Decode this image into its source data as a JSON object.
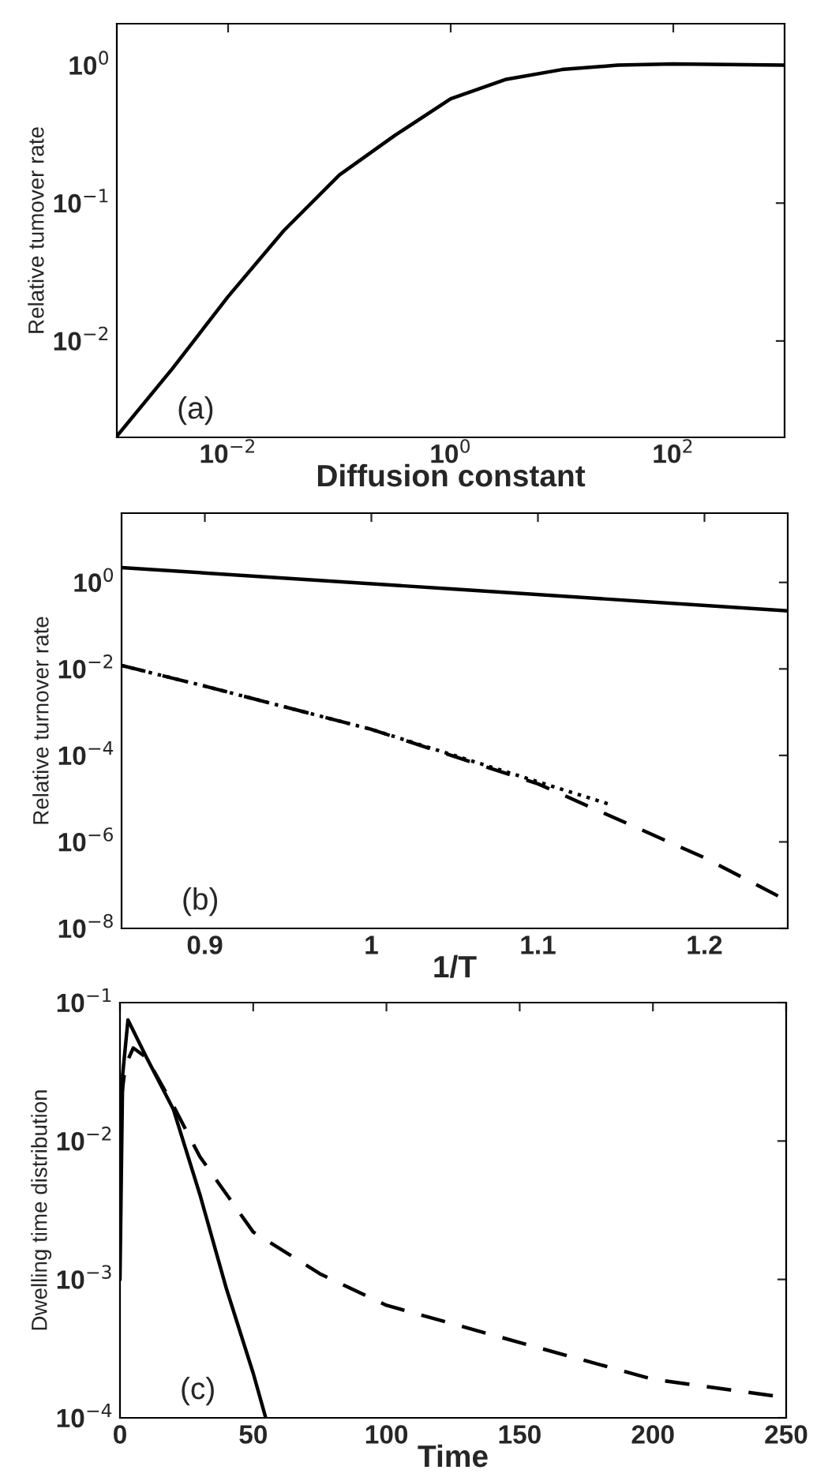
{
  "chart_data": [
    {
      "type": "line",
      "xlabel": "Diffusion constant",
      "ylabel": "Relative tumover rate",
      "log": "xy",
      "grid": false,
      "legend": false,
      "xlim": [
        0.001,
        1000
      ],
      "ylim": [
        0.002,
        2
      ],
      "xticks": [
        {
          "value": 0.01,
          "label": "10$^{−2}$"
        },
        {
          "value": 1,
          "label": "10$^{0}$"
        },
        {
          "value": 100,
          "label": "10$^{2}$"
        }
      ],
      "yticks": [
        {
          "value": 0.01,
          "label": "10$^{−2}$"
        },
        {
          "value": 0.1,
          "label": "10$^{−1}$"
        },
        {
          "value": 1,
          "label": "10$^{0}$"
        }
      ],
      "annotations": [
        "(a)"
      ],
      "series": [
        {
          "color": "#000000",
          "line_style": "solid",
          "x": [
            0.001,
            0.00316,
            0.01,
            0.0316,
            0.1,
            0.316,
            1,
            3.16,
            10,
            31.6,
            100,
            1000
          ],
          "values": [
            0.00204,
            0.0063,
            0.021,
            0.063,
            0.16,
            0.31,
            0.57,
            0.79,
            0.93,
            1.0,
            1.02,
            1.0
          ]
        }
      ]
    },
    {
      "type": "line",
      "xlabel": "1/T",
      "ylabel": "Relative turnover rate",
      "log": "y",
      "grid": false,
      "legend": false,
      "xlim": [
        0.85,
        1.25
      ],
      "ylim": [
        1e-08,
        40
      ],
      "xticks": [
        0.9,
        1,
        1.1,
        1.2
      ],
      "yticks": [
        {
          "value": 1e-08,
          "label": "10$^{−8}$"
        },
        {
          "value": 1e-06,
          "label": "10$^{−6}$"
        },
        {
          "value": 0.0001,
          "label": "10$^{−4}$"
        },
        {
          "value": 0.01,
          "label": "10$^{−2}$"
        },
        {
          "value": 1,
          "label": "10$^{0}$"
        }
      ],
      "annotations": [
        "(b)"
      ],
      "series": [
        {
          "color": "#000000",
          "line_style": "solid",
          "x": [
            0.85,
            1.05,
            1.25
          ],
          "values": [
            2.2,
            0.7,
            0.22
          ]
        },
        {
          "color": "#000000",
          "line_style": "dashed",
          "x": [
            0.85,
            0.9,
            1.0,
            1.1,
            1.2,
            1.25
          ],
          "values": [
            0.012,
            0.004,
            0.0004,
            2.2e-05,
            4.3e-07,
            4.3e-08
          ]
        },
        {
          "color": "#000000",
          "line_style": "dotted",
          "x": [
            0.85,
            0.9,
            1.0,
            1.145
          ],
          "values": [
            0.012,
            0.004,
            0.0004,
            7e-06
          ]
        }
      ]
    },
    {
      "type": "line",
      "xlabel": "Time",
      "ylabel": "Dwelling time distribution",
      "log": "y",
      "grid": false,
      "legend": false,
      "xlim": [
        0,
        250
      ],
      "ylim": [
        0.0001,
        0.1
      ],
      "xticks": [
        0,
        50,
        100,
        150,
        200,
        250
      ],
      "yticks": [
        {
          "value": 0.0001,
          "label": "10$^{−4}$"
        },
        {
          "value": 0.001,
          "label": "10$^{−3}$"
        },
        {
          "value": 0.01,
          "label": "10$^{−2}$"
        },
        {
          "value": 0.1,
          "label": "10$^{−1}$"
        }
      ],
      "annotations": [
        "(c)"
      ],
      "series": [
        {
          "color": "#000000",
          "line_style": "solid",
          "x": [
            0,
            1,
            3,
            10,
            20,
            30,
            40,
            50,
            54.7
          ],
          "values": [
            0.001,
            0.03,
            0.075,
            0.04,
            0.017,
            0.0041,
            0.00085,
            0.00021,
            0.0001
          ]
        },
        {
          "color": "#000000",
          "line_style": "dashed",
          "x": [
            0.5,
            2,
            5,
            10,
            20,
            30,
            50,
            75,
            100,
            150,
            200,
            250
          ],
          "values": [
            0.02,
            0.035,
            0.047,
            0.04,
            0.018,
            0.0077,
            0.0022,
            0.0011,
            0.00065,
            0.00035,
            0.00019,
            0.00014
          ]
        }
      ]
    }
  ]
}
